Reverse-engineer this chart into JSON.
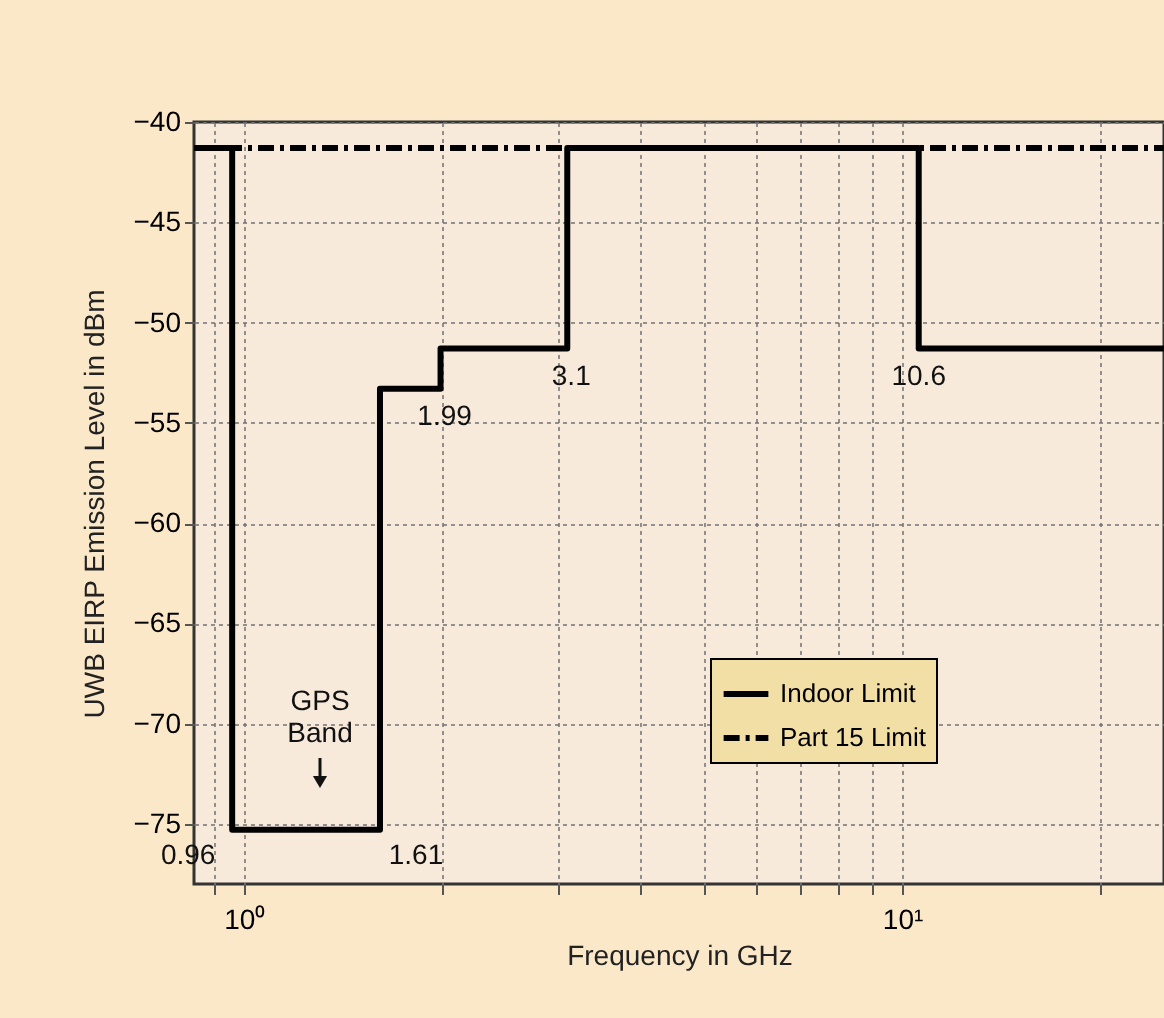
{
  "chart_data": {
    "type": "step",
    "xlabel": "Frequency in GHz",
    "ylabel": "UWB EIRP Emission Level in dBm",
    "log": "x",
    "xlim": [
      0.84,
      25
    ],
    "ylim": [
      -78,
      -40
    ],
    "xticks": [
      {
        "value": 0.9,
        "label": null
      },
      {
        "value": 1,
        "label": "10⁰"
      },
      {
        "value": 2,
        "label": null
      },
      {
        "value": 3,
        "label": null
      },
      {
        "value": 4,
        "label": null
      },
      {
        "value": 5,
        "label": null
      },
      {
        "value": 6,
        "label": null
      },
      {
        "value": 7,
        "label": null
      },
      {
        "value": 8,
        "label": null
      },
      {
        "value": 9,
        "label": null
      },
      {
        "value": 10,
        "label": "10¹"
      },
      {
        "value": 20,
        "label": null
      }
    ],
    "yticks": [
      {
        "value": -40,
        "label": "−40"
      },
      {
        "value": -45,
        "label": "−45"
      },
      {
        "value": -50,
        "label": "−50"
      },
      {
        "value": -55,
        "label": "−55"
      },
      {
        "value": -60,
        "label": "−60"
      },
      {
        "value": -65,
        "label": "−65"
      },
      {
        "value": -70,
        "label": "−70"
      },
      {
        "value": -75,
        "label": "−75"
      }
    ],
    "grid": true,
    "legend": "bottom right",
    "series": [
      {
        "name": "Indoor Limit",
        "color": "#000000",
        "line_style": "solid",
        "x": [
          0.84,
          0.96,
          1.61,
          1.99,
          3.1,
          10.6,
          25
        ],
        "values": [
          -41.3,
          -75.3,
          -53.3,
          -51.3,
          -41.3,
          -51.3,
          -51.3
        ]
      },
      {
        "name": "Part 15 Limit",
        "color": "#000000",
        "line_style": "dashed",
        "x": [
          0.84,
          25
        ],
        "values": [
          -41.3,
          -41.3
        ]
      }
    ],
    "annotations": [
      {
        "text": "0.96",
        "x": 0.96,
        "y": -75.3
      },
      {
        "text": "1.61",
        "x": 1.61,
        "y": -75.3
      },
      {
        "text": "1.99",
        "x": 1.99,
        "y": -53.3
      },
      {
        "text": "3.1",
        "x": 3.1,
        "y": -51.3
      },
      {
        "text": "10.6",
        "x": 10.6,
        "y": -51.3
      },
      "GPS\nBand"
    ]
  }
}
